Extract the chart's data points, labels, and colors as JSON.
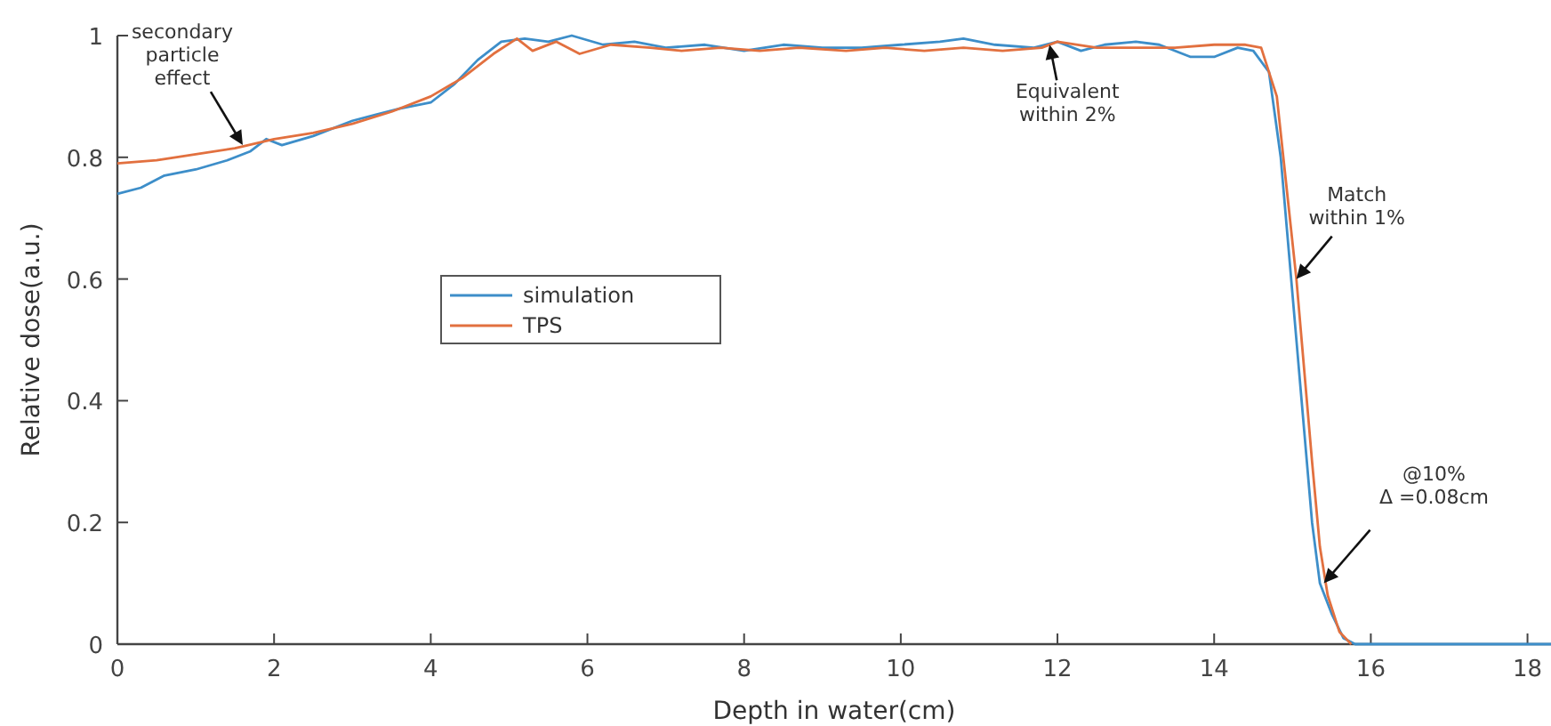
{
  "chart_data": {
    "type": "line",
    "xlabel": "Depth in water(cm)",
    "ylabel": "Relative dose(a.u.)",
    "xlim": [
      0,
      18.3
    ],
    "xticks": [
      0,
      2,
      4,
      6,
      8,
      10,
      12,
      14,
      16,
      18
    ],
    "ylim": [
      0,
      1
    ],
    "yticks": [
      0,
      0.2,
      0.4,
      0.6,
      0.8,
      1
    ],
    "legend": "left",
    "grid": false,
    "line_style": "solid",
    "series": [
      {
        "name": "simulation",
        "color": "#3d8ec9",
        "x": [
          0,
          0.3,
          0.6,
          1,
          1.4,
          1.7,
          1.9,
          2.1,
          2.5,
          3,
          3.3,
          3.6,
          4,
          4.3,
          4.6,
          4.9,
          5.2,
          5.5,
          5.8,
          6.2,
          6.6,
          7,
          7.5,
          8,
          8.5,
          9,
          9.5,
          10,
          10.5,
          10.8,
          11.2,
          11.7,
          12,
          12.3,
          12.6,
          13,
          13.3,
          13.7,
          14,
          14.3,
          14.5,
          14.7,
          14.85,
          14.95,
          15.05,
          15.15,
          15.25,
          15.35,
          15.5,
          15.65,
          15.8,
          16.5,
          18.3
        ],
        "values": [
          0.74,
          0.75,
          0.77,
          0.78,
          0.795,
          0.81,
          0.83,
          0.82,
          0.835,
          0.86,
          0.87,
          0.88,
          0.89,
          0.92,
          0.96,
          0.99,
          0.995,
          0.99,
          1.0,
          0.985,
          0.99,
          0.98,
          0.985,
          0.975,
          0.985,
          0.98,
          0.98,
          0.985,
          0.99,
          0.995,
          0.985,
          0.98,
          0.99,
          0.975,
          0.985,
          0.99,
          0.985,
          0.965,
          0.965,
          0.98,
          0.975,
          0.94,
          0.8,
          0.65,
          0.5,
          0.35,
          0.2,
          0.1,
          0.05,
          0.01,
          0,
          0,
          0
        ]
      },
      {
        "name": "TPS",
        "color": "#e2703f",
        "x": [
          0,
          0.5,
          1,
          1.5,
          2,
          2.5,
          3,
          3.5,
          4,
          4.4,
          4.8,
          5.1,
          5.3,
          5.6,
          5.9,
          6.3,
          6.8,
          7.2,
          7.7,
          8.2,
          8.7,
          9.3,
          9.8,
          10.3,
          10.8,
          11.3,
          11.8,
          12,
          12.5,
          13,
          13.5,
          14,
          14.4,
          14.6,
          14.8,
          14.95,
          15.05,
          15.15,
          15.25,
          15.35,
          15.45,
          15.6,
          15.75
        ],
        "values": [
          0.79,
          0.795,
          0.805,
          0.815,
          0.83,
          0.84,
          0.855,
          0.875,
          0.9,
          0.93,
          0.97,
          0.995,
          0.975,
          0.99,
          0.97,
          0.985,
          0.98,
          0.975,
          0.98,
          0.975,
          0.98,
          0.975,
          0.98,
          0.975,
          0.98,
          0.975,
          0.98,
          0.99,
          0.98,
          0.98,
          0.98,
          0.985,
          0.985,
          0.98,
          0.9,
          0.72,
          0.6,
          0.45,
          0.3,
          0.16,
          0.08,
          0.02,
          0
        ]
      }
    ],
    "annotations": [
      {
        "text": "secondary\nparticle\neffect",
        "x": 1.6,
        "y": 0.82
      },
      {
        "text": "Equivalent\nwithin 2%",
        "x": 11.9,
        "y": 0.985
      },
      {
        "text": "Match\nwithin 1%",
        "x": 15.05,
        "y": 0.6
      },
      {
        "text": "@10%\nΔ =0.08cm",
        "x": 15.4,
        "y": 0.1
      }
    ]
  }
}
